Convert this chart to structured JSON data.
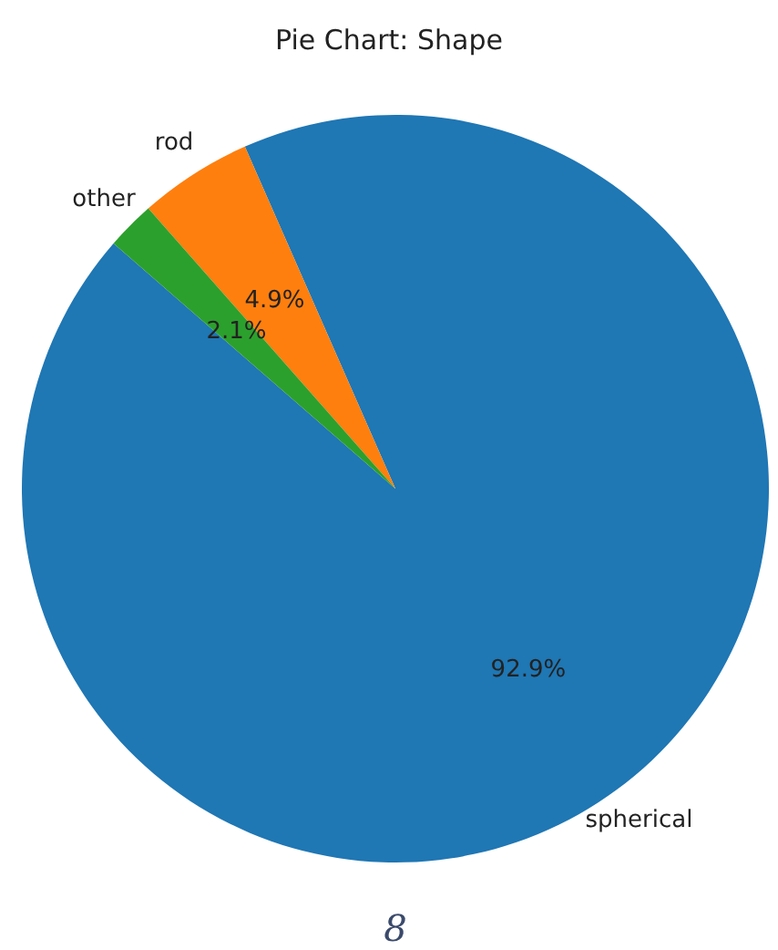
{
  "chart_data": {
    "type": "pie",
    "title": "Pie Chart: Shape",
    "categories": [
      "spherical",
      "rod",
      "other"
    ],
    "values": [
      92.9,
      4.9,
      2.1
    ],
    "colors": [
      "#1f77b4",
      "#ff7f0e",
      "#2ca02c"
    ],
    "value_labels": [
      "92.9%",
      "4.9%",
      "2.1%"
    ],
    "annotations": [
      "8"
    ]
  }
}
